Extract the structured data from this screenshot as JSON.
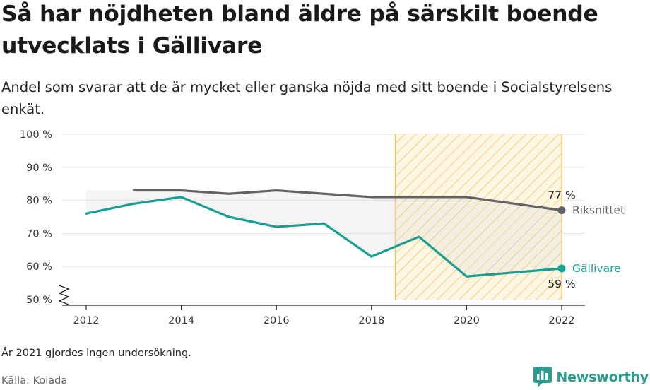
{
  "title": "Så har nöjdheten bland äldre på särskilt boende utvecklats i Gällivare",
  "subtitle": "Andel som svarar att de är mycket eller ganska nöjda med sitt boende i Socialstyrelsens enkät.",
  "note": "År 2021 gjordes ingen undersökning.",
  "source": "Källa: Kolada",
  "brand": {
    "name": "Newsworthy",
    "icon": "newsworthy-logo-icon",
    "color": "#2a9d8f"
  },
  "chart_data": {
    "type": "line",
    "ylim": [
      50,
      100
    ],
    "xlim": [
      2011.5,
      2022.5
    ],
    "yticks": [
      50,
      60,
      70,
      80,
      90,
      100
    ],
    "ytick_labels": [
      "50 %",
      "60 %",
      "70 %",
      "80 %",
      "90 %",
      "100 %"
    ],
    "xticks": [
      2012,
      2014,
      2016,
      2018,
      2020,
      2022
    ],
    "xtick_labels": [
      "2012",
      "2014",
      "2016",
      "2018",
      "2020",
      "2022"
    ],
    "y_axis_break": true,
    "grid": true,
    "highlight_period": {
      "from": 2018.5,
      "to": 2022,
      "color": "#f5c451"
    },
    "series": [
      {
        "name": "Riksnittet",
        "color": "#636066",
        "x": [
          2013,
          2014,
          2015,
          2016,
          2017,
          2018,
          2019,
          2020,
          2022
        ],
        "values": [
          83,
          83,
          82,
          83,
          82,
          81,
          81,
          81,
          77
        ],
        "end_label": "77 %"
      },
      {
        "name": "Gällivare",
        "color": "#1a9e91",
        "x": [
          2012,
          2013,
          2014,
          2015,
          2016,
          2017,
          2018,
          2019,
          2020,
          2022
        ],
        "values": [
          76,
          79,
          81,
          75,
          72,
          73,
          63,
          69,
          57,
          59.4
        ],
        "end_label": "59 %"
      }
    ]
  }
}
